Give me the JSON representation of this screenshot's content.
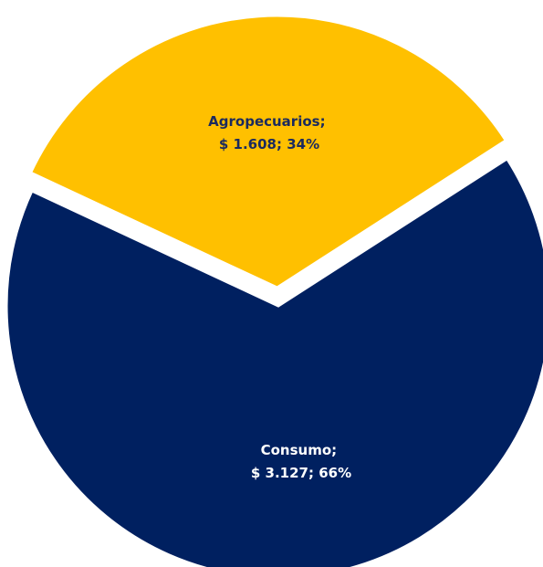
{
  "chart_data": {
    "type": "pie",
    "slices": [
      {
        "name": "Agropecuarios",
        "value": 1608,
        "percent": 34,
        "label_line1": "Agropecuarios;",
        "label_line2": "$ 1.608; 34%",
        "color": "#FFC000",
        "label_color": "#1B2A5E"
      },
      {
        "name": "Consumo",
        "value": 3127,
        "percent": 66,
        "label_line1": "Consumo;",
        "label_line2": "$ 3.127; 66%",
        "color": "#002060",
        "label_color": "#FFFFFF"
      }
    ],
    "legend": "none"
  }
}
